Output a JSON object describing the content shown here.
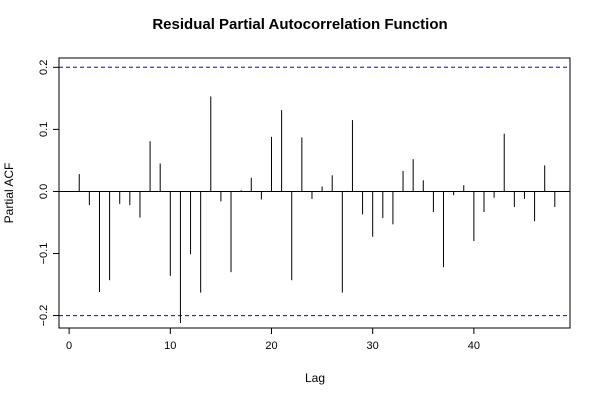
{
  "chart_data": {
    "type": "bar",
    "title": "Residual Partial Autocorrelation Function",
    "xlabel": "Lag",
    "ylabel": "Partial ACF",
    "xlim": [
      -1,
      49.5
    ],
    "ylim": [
      -0.22,
      0.215
    ],
    "x_ticks": [
      0,
      10,
      20,
      30,
      40
    ],
    "y_ticks": [
      -0.2,
      -0.1,
      0.0,
      0.1,
      0.2
    ],
    "y_tick_labels": [
      "−0.2",
      "−0.1",
      "0.0",
      "0.1",
      "0.2"
    ],
    "confidence_bounds": [
      0.2,
      -0.2
    ],
    "colors": {
      "bars": "#000000",
      "bounds": "#0000ff",
      "zero_line": "#000000"
    },
    "grid": false,
    "x": [
      1,
      2,
      3,
      4,
      5,
      6,
      7,
      8,
      9,
      10,
      11,
      12,
      13,
      14,
      15,
      16,
      17,
      18,
      19,
      20,
      21,
      22,
      23,
      24,
      25,
      26,
      27,
      28,
      29,
      30,
      31,
      32,
      33,
      34,
      35,
      36,
      37,
      38,
      39,
      40,
      41,
      42,
      43,
      44,
      45,
      46,
      47,
      48
    ],
    "values": [
      0.028,
      -0.022,
      -0.162,
      -0.143,
      -0.02,
      -0.022,
      -0.042,
      0.081,
      0.045,
      -0.136,
      -0.212,
      -0.101,
      -0.163,
      0.153,
      -0.016,
      -0.13,
      0.002,
      0.022,
      -0.013,
      0.088,
      0.131,
      -0.143,
      0.087,
      -0.012,
      0.008,
      0.026,
      -0.163,
      0.115,
      -0.037,
      -0.073,
      -0.043,
      -0.053,
      0.033,
      0.052,
      0.018,
      -0.033,
      -0.122,
      -0.006,
      0.01,
      -0.08,
      -0.033,
      -0.01,
      0.093,
      -0.025,
      -0.012,
      -0.048,
      0.042,
      -0.025
    ]
  }
}
